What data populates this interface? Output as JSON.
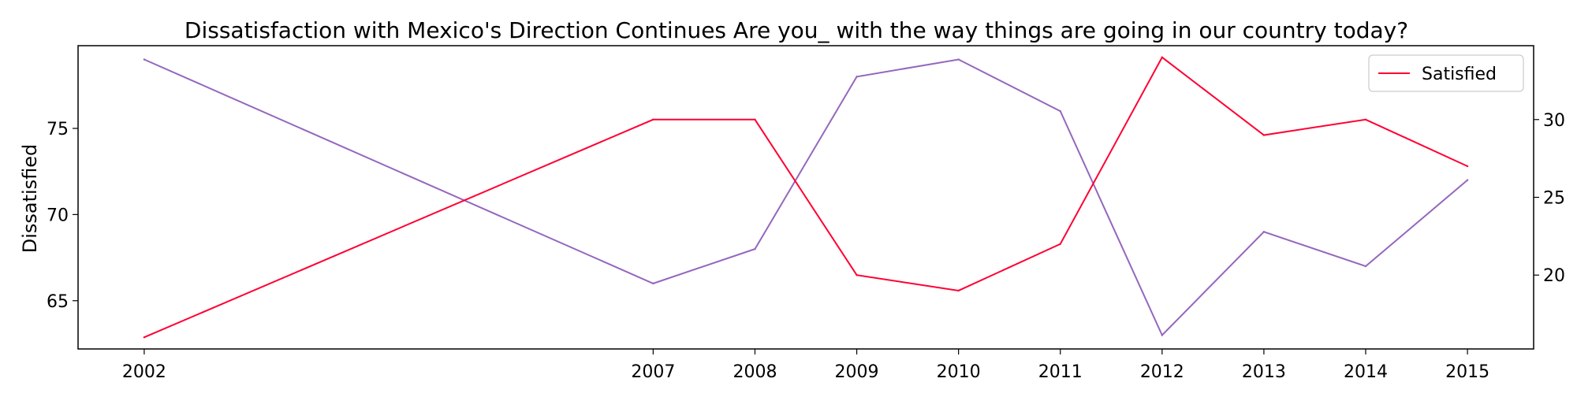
{
  "chart_data": {
    "type": "line",
    "title": "Dissatisfaction with Mexico's Direction Continues Are you_ with the way things are going in our country today?",
    "xlabel": "",
    "ylabel": "Dissatisfied",
    "ylabel_right": "",
    "categories": [
      "2002",
      "2007",
      "2008",
      "2009",
      "2010",
      "2011",
      "2012",
      "2013",
      "2014",
      "2015"
    ],
    "x": [
      2002,
      2007,
      2008,
      2009,
      2010,
      2011,
      2012,
      2013,
      2014,
      2015
    ],
    "xlim": [
      2001.35,
      2015.65
    ],
    "left_axis": {
      "ylim": [
        62.2,
        79.8
      ],
      "ticks": [
        65,
        70,
        75
      ],
      "tick_labels": [
        "65",
        "70",
        "75"
      ]
    },
    "right_axis": {
      "ylim": [
        15.25,
        34.75
      ],
      "ticks": [
        20,
        25,
        30
      ],
      "tick_labels": [
        "20",
        "25",
        "30"
      ]
    },
    "series": [
      {
        "name": "",
        "axis": "left",
        "color": "#9467bd",
        "values": [
          79,
          66,
          68,
          78,
          79,
          76,
          63,
          69,
          67,
          72
        ]
      },
      {
        "name": "Satisfied",
        "axis": "right",
        "color": "#ff0033",
        "values": [
          16,
          30,
          30,
          20,
          19,
          22,
          34,
          29,
          30,
          27
        ]
      }
    ],
    "legend": {
      "position": "top-right",
      "entries": [
        "Satisfied"
      ]
    },
    "grid": false
  }
}
